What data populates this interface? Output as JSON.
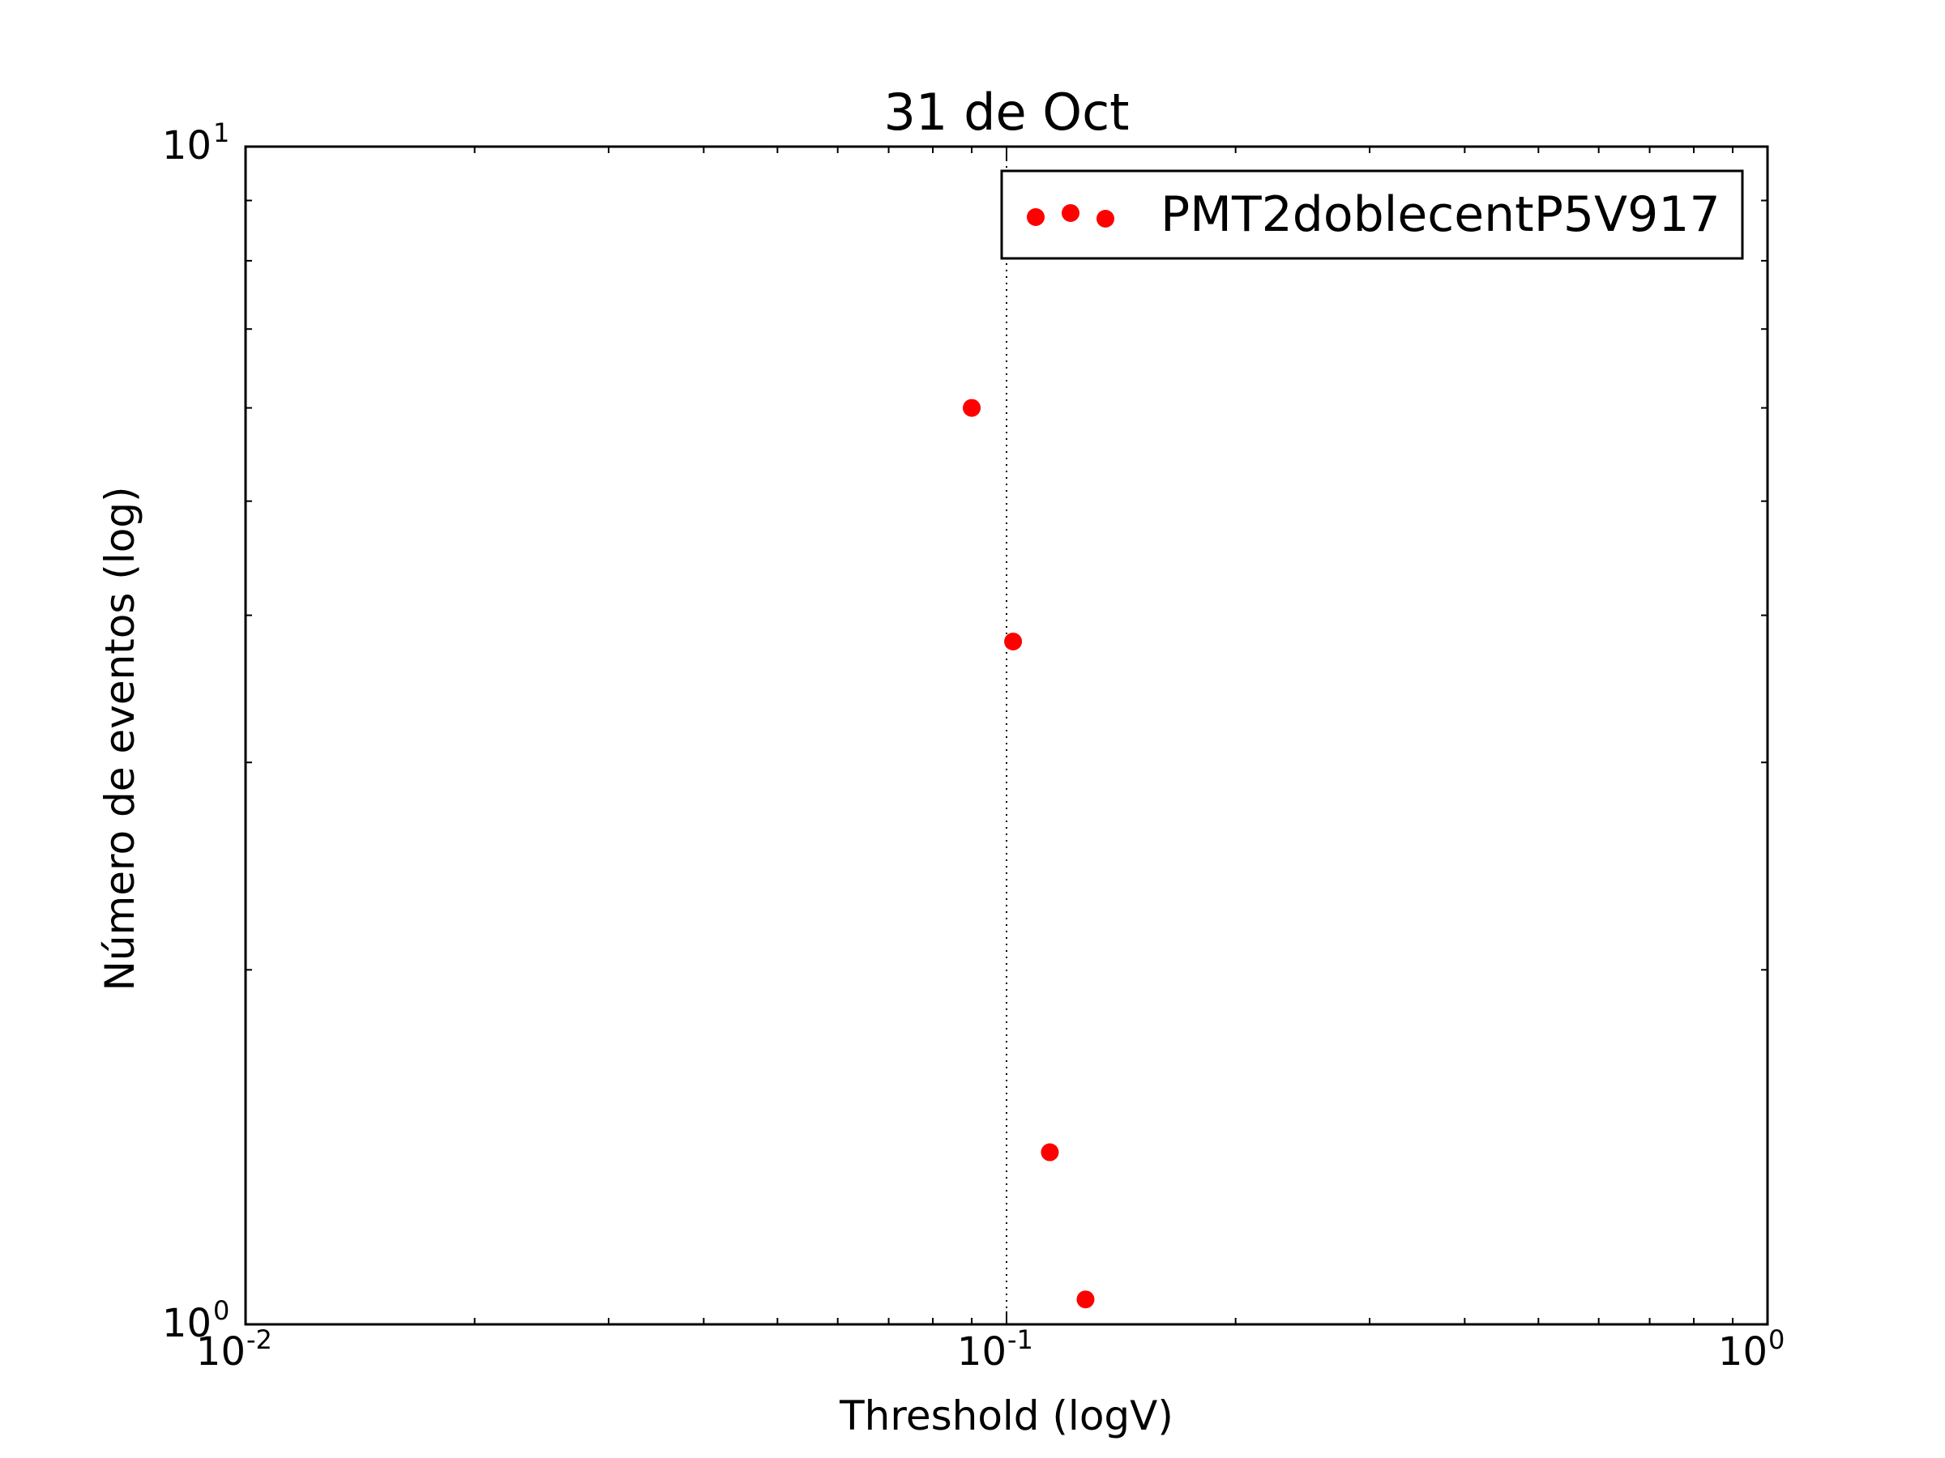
{
  "chart_data": {
    "type": "scatter",
    "title": "31 de Oct",
    "xlabel": "Threshold (logV)",
    "ylabel": "Número de eventos (log)",
    "x_scale": "log",
    "y_scale": "log",
    "xlim": [
      0.01,
      1
    ],
    "ylim": [
      1,
      10
    ],
    "x_ticks": [
      {
        "base": "10",
        "exp": "-2"
      },
      {
        "base": "10",
        "exp": "-1"
      },
      {
        "base": "10",
        "exp": "0"
      }
    ],
    "y_ticks": [
      {
        "base": "10",
        "exp": "0"
      },
      {
        "base": "10",
        "exp": "1"
      }
    ],
    "vline": {
      "x": 0.1,
      "style": "dotted"
    },
    "legend": {
      "position": "top-right",
      "label": "PMT2doblecentP5V917"
    },
    "series": [
      {
        "name": "PMT2doblecentP5V917",
        "color": "#ff0000",
        "marker": "circle",
        "x": [
          0.09,
          0.102,
          0.114,
          0.127
        ],
        "y": [
          6.0,
          3.8,
          1.4,
          1.05
        ]
      }
    ]
  }
}
